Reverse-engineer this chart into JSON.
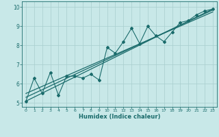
{
  "xlabel": "Humidex (Indice chaleur)",
  "bg_color": "#c8e8e8",
  "line_color": "#1a6b6b",
  "grid_color": "#a8cece",
  "xlim": [
    -0.5,
    23.5
  ],
  "ylim": [
    4.8,
    10.3
  ],
  "xticks": [
    0,
    1,
    2,
    3,
    4,
    5,
    6,
    7,
    8,
    9,
    10,
    11,
    12,
    13,
    14,
    15,
    16,
    17,
    18,
    19,
    20,
    21,
    22,
    23
  ],
  "yticks": [
    5,
    6,
    7,
    8,
    9,
    10
  ],
  "scatter_x": [
    0,
    1,
    2,
    3,
    4,
    5,
    6,
    7,
    8,
    9,
    10,
    11,
    12,
    13,
    14,
    15,
    16,
    17,
    18,
    19,
    20,
    21,
    22,
    23
  ],
  "scatter_y": [
    5.1,
    6.3,
    5.5,
    6.6,
    5.4,
    6.4,
    6.4,
    6.3,
    6.5,
    6.2,
    7.9,
    7.6,
    8.2,
    8.9,
    8.1,
    9.0,
    8.5,
    8.2,
    8.7,
    9.2,
    9.3,
    9.6,
    9.8,
    9.9
  ],
  "line1_x": [
    0,
    23
  ],
  "line1_y": [
    5.1,
    9.9
  ],
  "line2_x": [
    0,
    23
  ],
  "line2_y": [
    5.3,
    9.85
  ],
  "line3_x": [
    0,
    23
  ],
  "line3_y": [
    5.5,
    9.75
  ]
}
